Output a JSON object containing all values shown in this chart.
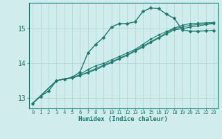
{
  "title": "",
  "xlabel": "Humidex (Indice chaleur)",
  "ylabel": "",
  "bg_color": "#d0ecec",
  "grid_color": "#aad4d4",
  "line_color": "#1a7a6e",
  "xlim": [
    -0.5,
    23.5
  ],
  "ylim": [
    12.7,
    15.75
  ],
  "yticks": [
    13,
    14,
    15
  ],
  "xticks": [
    0,
    1,
    2,
    3,
    4,
    5,
    6,
    7,
    8,
    9,
    10,
    11,
    12,
    13,
    14,
    15,
    16,
    17,
    18,
    19,
    20,
    21,
    22,
    23
  ],
  "series": [
    {
      "xs": [
        0,
        1,
        2,
        3,
        4,
        5,
        6,
        7,
        8,
        9,
        10,
        11,
        12,
        13,
        14,
        15,
        16,
        17,
        18,
        19,
        20,
        21,
        22,
        23
      ],
      "ys": [
        12.85,
        13.05,
        13.2,
        13.5,
        13.55,
        13.6,
        13.75,
        14.3,
        14.55,
        14.75,
        15.05,
        15.15,
        15.15,
        15.2,
        15.5,
        15.6,
        15.58,
        15.42,
        15.3,
        14.97,
        14.93,
        14.93,
        14.94,
        14.95
      ],
      "lw": 1.0,
      "ms": 2.5
    },
    {
      "xs": [
        0,
        3,
        4,
        5,
        6,
        7,
        8,
        9,
        10,
        11,
        12,
        13,
        14,
        15,
        16,
        17,
        18,
        19,
        20,
        21,
        22,
        23
      ],
      "ys": [
        12.85,
        13.5,
        13.55,
        13.58,
        13.68,
        13.82,
        13.93,
        14.0,
        14.1,
        14.2,
        14.3,
        14.4,
        14.55,
        14.7,
        14.82,
        14.92,
        15.02,
        15.1,
        15.15,
        15.16,
        15.17,
        15.18
      ],
      "lw": 0.8,
      "ms": 1.8
    },
    {
      "xs": [
        0,
        3,
        4,
        5,
        6,
        7,
        8,
        9,
        10,
        11,
        12,
        13,
        14,
        15,
        16,
        17,
        18,
        19,
        20,
        21,
        22,
        23
      ],
      "ys": [
        12.85,
        13.5,
        13.55,
        13.58,
        13.65,
        13.75,
        13.85,
        13.95,
        14.05,
        14.15,
        14.25,
        14.37,
        14.5,
        14.63,
        14.75,
        14.88,
        15.0,
        15.05,
        15.1,
        15.12,
        15.14,
        15.16
      ],
      "lw": 0.8,
      "ms": 1.8
    },
    {
      "xs": [
        0,
        3,
        4,
        5,
        6,
        7,
        8,
        9,
        10,
        11,
        12,
        13,
        14,
        15,
        16,
        17,
        18,
        19,
        20,
        21,
        22,
        23
      ],
      "ys": [
        12.85,
        13.5,
        13.55,
        13.58,
        13.65,
        13.73,
        13.82,
        13.92,
        14.02,
        14.13,
        14.23,
        14.35,
        14.47,
        14.6,
        14.73,
        14.85,
        14.97,
        15.0,
        15.05,
        15.08,
        15.12,
        15.15
      ],
      "lw": 0.8,
      "ms": 1.8
    }
  ]
}
